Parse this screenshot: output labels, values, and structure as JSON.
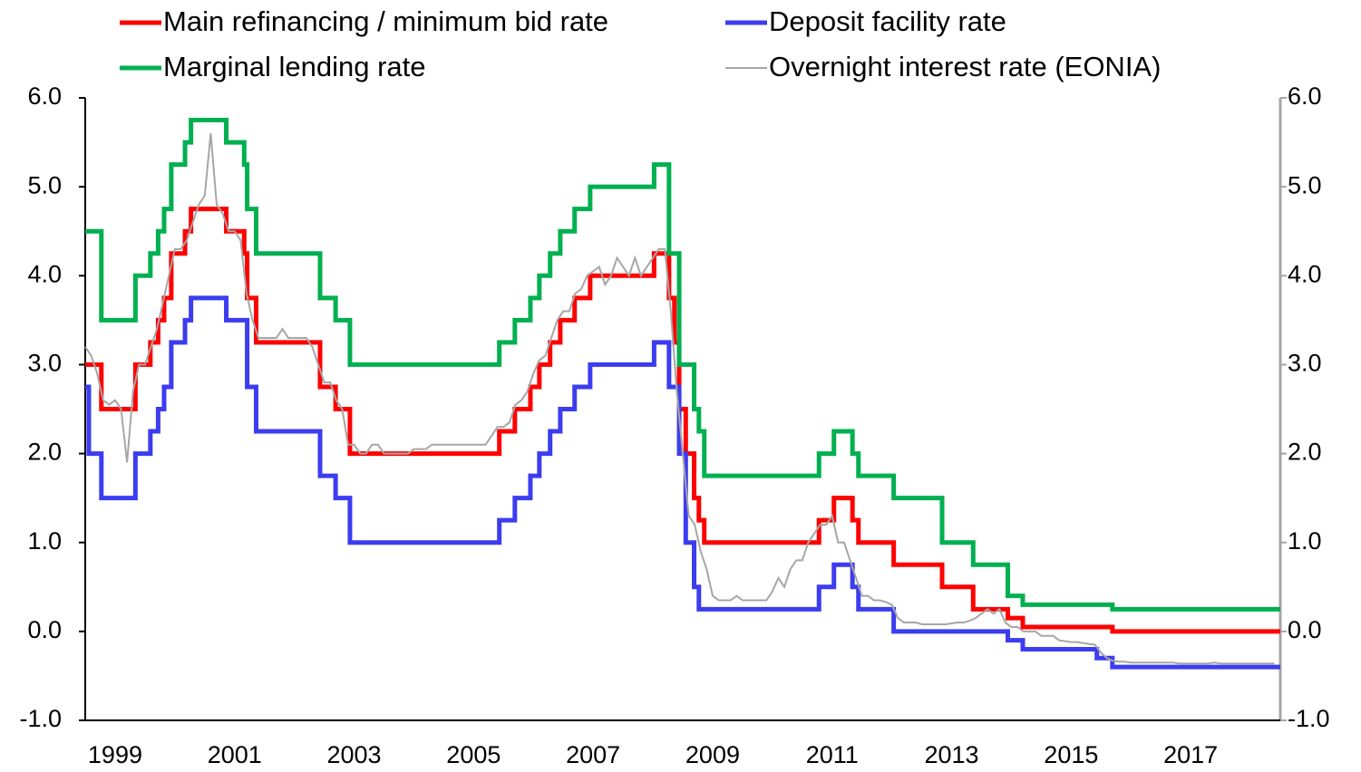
{
  "chart_data": {
    "type": "line",
    "step": "post",
    "xlim": [
      1999,
      2019
    ],
    "xticks": [
      {
        "value": 1999.5,
        "label": "1999"
      },
      {
        "value": 2001.5,
        "label": "2001"
      },
      {
        "value": 2003.5,
        "label": "2003"
      },
      {
        "value": 2005.5,
        "label": "2005"
      },
      {
        "value": 2007.5,
        "label": "2007"
      },
      {
        "value": 2009.5,
        "label": "2009"
      },
      {
        "value": 2011.5,
        "label": "2011"
      },
      {
        "value": 2013.5,
        "label": "2013"
      },
      {
        "value": 2015.5,
        "label": "2015"
      },
      {
        "value": 2017.5,
        "label": "2017"
      }
    ],
    "ylim": [
      -1,
      6
    ],
    "yticks": [
      {
        "value": -1,
        "label": "-1.0"
      },
      {
        "value": 0,
        "label": "0.0"
      },
      {
        "value": 1,
        "label": "1.0"
      },
      {
        "value": 2,
        "label": "2.0"
      },
      {
        "value": 3,
        "label": "3.0"
      },
      {
        "value": 4,
        "label": "4.0"
      },
      {
        "value": 5,
        "label": "5.0"
      },
      {
        "value": 6,
        "label": "6.0"
      }
    ],
    "y2lim": [
      -1,
      6
    ],
    "y2ticks": [
      {
        "value": -1,
        "label": "-1.0"
      },
      {
        "value": 0,
        "label": "0.0"
      },
      {
        "value": 1,
        "label": "1.0"
      },
      {
        "value": 2,
        "label": "2.0"
      },
      {
        "value": 3,
        "label": "3.0"
      },
      {
        "value": 4,
        "label": "4.0"
      },
      {
        "value": 5,
        "label": "5.0"
      },
      {
        "value": 6,
        "label": "6.0"
      }
    ],
    "series": [
      {
        "name": "Main refinancing / minimum bid rate",
        "color": "#ff0000",
        "step": true,
        "x": [
          1999.0,
          1999.27,
          1999.84,
          2000.09,
          2000.22,
          2000.32,
          2000.44,
          2000.67,
          2000.77,
          2001.36,
          2001.66,
          2001.71,
          2001.86,
          2002.93,
          2003.19,
          2003.43,
          2005.93,
          2006.19,
          2006.45,
          2006.6,
          2006.78,
          2006.95,
          2007.19,
          2007.45,
          2008.52,
          2008.77,
          2008.86,
          2008.94,
          2009.05,
          2009.19,
          2009.27,
          2009.36,
          2011.28,
          2011.53,
          2011.84,
          2011.94,
          2012.53,
          2013.34,
          2013.86,
          2014.44,
          2014.69,
          2016.19,
          2019.0
        ],
        "values": [
          3.0,
          2.5,
          3.0,
          3.25,
          3.5,
          3.75,
          4.25,
          4.5,
          4.75,
          4.5,
          4.25,
          3.75,
          3.25,
          2.75,
          2.5,
          2.0,
          2.25,
          2.5,
          2.75,
          3.0,
          3.25,
          3.5,
          3.75,
          4.0,
          4.25,
          3.75,
          3.25,
          2.5,
          2.0,
          1.5,
          1.25,
          1.0,
          1.25,
          1.5,
          1.25,
          1.0,
          0.75,
          0.5,
          0.25,
          0.15,
          0.05,
          0.0,
          0.0
        ]
      },
      {
        "name": "Deposit facility rate",
        "color": "#3c3cf0",
        "step": true,
        "x": [
          1999.0,
          1999.06,
          1999.27,
          1999.84,
          2000.09,
          2000.22,
          2000.32,
          2000.44,
          2000.67,
          2000.77,
          2001.36,
          2001.71,
          2001.86,
          2002.93,
          2003.19,
          2003.43,
          2005.93,
          2006.19,
          2006.45,
          2006.6,
          2006.78,
          2006.95,
          2007.19,
          2007.45,
          2008.52,
          2008.77,
          2008.94,
          2009.05,
          2009.19,
          2009.27,
          2011.28,
          2011.53,
          2011.84,
          2011.94,
          2012.53,
          2014.44,
          2014.69,
          2015.93,
          2016.19,
          2019.0
        ],
        "values": [
          2.75,
          2.0,
          1.5,
          2.0,
          2.25,
          2.5,
          2.75,
          3.25,
          3.5,
          3.75,
          3.5,
          2.75,
          2.25,
          1.75,
          1.5,
          1.0,
          1.25,
          1.5,
          1.75,
          2.0,
          2.25,
          2.5,
          2.75,
          3.0,
          3.25,
          2.75,
          2.0,
          1.0,
          0.5,
          0.25,
          0.5,
          0.75,
          0.5,
          0.25,
          0.0,
          -0.1,
          -0.2,
          -0.3,
          -0.4,
          -0.4
        ]
      },
      {
        "name": "Marginal lending rate",
        "color": "#00b050",
        "step": true,
        "x": [
          1999.0,
          1999.27,
          1999.84,
          2000.09,
          2000.22,
          2000.32,
          2000.44,
          2000.67,
          2000.77,
          2001.36,
          2001.66,
          2001.71,
          2001.86,
          2002.93,
          2003.19,
          2003.43,
          2005.93,
          2006.19,
          2006.45,
          2006.6,
          2006.78,
          2006.95,
          2007.19,
          2007.45,
          2008.52,
          2008.77,
          2008.94,
          2009.19,
          2009.27,
          2009.36,
          2011.28,
          2011.53,
          2011.84,
          2011.94,
          2012.53,
          2013.34,
          2013.86,
          2014.44,
          2014.69,
          2016.19,
          2019.0
        ],
        "values": [
          4.5,
          3.5,
          4.0,
          4.25,
          4.5,
          4.75,
          5.25,
          5.5,
          5.75,
          5.5,
          5.25,
          4.75,
          4.25,
          3.75,
          3.5,
          3.0,
          3.25,
          3.5,
          3.75,
          4.0,
          4.25,
          4.5,
          4.75,
          5.0,
          5.25,
          4.25,
          3.0,
          2.5,
          2.25,
          1.75,
          2.0,
          2.25,
          2.0,
          1.75,
          1.5,
          1.0,
          0.75,
          0.4,
          0.3,
          0.25,
          0.25
        ]
      },
      {
        "name": "Overnight interest rate (EONIA)",
        "color": "#a6a6a6",
        "step": false,
        "x": [
          1999.0,
          1999.1,
          1999.2,
          1999.3,
          1999.4,
          1999.5,
          1999.6,
          1999.7,
          1999.8,
          1999.9,
          2000.0,
          2000.1,
          2000.2,
          2000.3,
          2000.4,
          2000.5,
          2000.6,
          2000.7,
          2000.8,
          2000.9,
          2001.0,
          2001.1,
          2001.2,
          2001.3,
          2001.4,
          2001.5,
          2001.6,
          2001.7,
          2001.8,
          2001.9,
          2002.0,
          2002.1,
          2002.2,
          2002.3,
          2002.4,
          2002.5,
          2002.6,
          2002.7,
          2002.8,
          2002.9,
          2003.0,
          2003.1,
          2003.2,
          2003.3,
          2003.4,
          2003.5,
          2003.6,
          2003.7,
          2003.8,
          2003.9,
          2004.0,
          2004.1,
          2004.2,
          2004.3,
          2004.4,
          2004.5,
          2004.6,
          2004.7,
          2004.8,
          2004.9,
          2005.0,
          2005.1,
          2005.2,
          2005.3,
          2005.4,
          2005.5,
          2005.6,
          2005.7,
          2005.8,
          2005.9,
          2006.0,
          2006.1,
          2006.2,
          2006.3,
          2006.4,
          2006.5,
          2006.6,
          2006.7,
          2006.8,
          2006.9,
          2007.0,
          2007.1,
          2007.2,
          2007.3,
          2007.4,
          2007.5,
          2007.6,
          2007.7,
          2007.8,
          2007.9,
          2008.0,
          2008.1,
          2008.2,
          2008.3,
          2008.4,
          2008.5,
          2008.6,
          2008.7,
          2008.8,
          2008.9,
          2009.0,
          2009.1,
          2009.2,
          2009.3,
          2009.4,
          2009.5,
          2009.6,
          2009.7,
          2009.8,
          2009.9,
          2010.0,
          2010.1,
          2010.2,
          2010.3,
          2010.4,
          2010.5,
          2010.6,
          2010.7,
          2010.8,
          2010.9,
          2011.0,
          2011.1,
          2011.2,
          2011.3,
          2011.4,
          2011.5,
          2011.6,
          2011.7,
          2011.8,
          2011.9,
          2012.0,
          2012.1,
          2012.2,
          2012.3,
          2012.4,
          2012.5,
          2012.6,
          2012.7,
          2012.8,
          2012.9,
          2013.0,
          2013.1,
          2013.2,
          2013.3,
          2013.4,
          2013.5,
          2013.6,
          2013.7,
          2013.8,
          2013.9,
          2014.0,
          2014.1,
          2014.2,
          2014.3,
          2014.4,
          2014.5,
          2014.6,
          2014.7,
          2014.8,
          2014.9,
          2015.0,
          2015.1,
          2015.2,
          2015.3,
          2015.4,
          2015.5,
          2015.6,
          2015.7,
          2015.8,
          2015.9,
          2016.0,
          2016.1,
          2016.2,
          2016.3,
          2016.4,
          2016.5,
          2016.6,
          2016.7,
          2016.8,
          2016.9,
          2017.0,
          2017.1,
          2017.2,
          2017.3,
          2017.4,
          2017.5,
          2017.6,
          2017.7,
          2017.8,
          2017.9,
          2018.0,
          2018.1,
          2018.2,
          2018.3,
          2018.4,
          2018.5,
          2018.6,
          2018.7,
          2018.8,
          2018.9
        ],
        "values": [
          3.2,
          3.1,
          2.9,
          2.6,
          2.55,
          2.6,
          2.5,
          1.9,
          2.7,
          3.0,
          3.0,
          3.2,
          3.4,
          3.7,
          4.0,
          4.3,
          4.3,
          4.4,
          4.6,
          4.8,
          4.9,
          5.6,
          4.8,
          4.7,
          4.5,
          4.5,
          4.4,
          3.8,
          3.5,
          3.3,
          3.3,
          3.3,
          3.3,
          3.4,
          3.3,
          3.3,
          3.3,
          3.3,
          3.2,
          3.0,
          2.8,
          2.8,
          2.6,
          2.5,
          2.1,
          2.1,
          2.0,
          2.0,
          2.1,
          2.1,
          2.0,
          2.0,
          2.0,
          2.0,
          2.0,
          2.05,
          2.05,
          2.05,
          2.1,
          2.1,
          2.1,
          2.1,
          2.1,
          2.1,
          2.1,
          2.1,
          2.1,
          2.1,
          2.2,
          2.3,
          2.3,
          2.35,
          2.55,
          2.6,
          2.7,
          2.9,
          3.05,
          3.1,
          3.3,
          3.5,
          3.6,
          3.6,
          3.8,
          3.85,
          4.0,
          4.05,
          4.1,
          3.9,
          4.0,
          4.2,
          4.1,
          4.0,
          4.2,
          4.0,
          4.1,
          4.2,
          4.3,
          4.3,
          3.6,
          2.7,
          2.0,
          1.3,
          1.2,
          0.9,
          0.7,
          0.4,
          0.35,
          0.35,
          0.35,
          0.4,
          0.35,
          0.35,
          0.35,
          0.35,
          0.35,
          0.45,
          0.6,
          0.5,
          0.7,
          0.8,
          0.8,
          1.0,
          1.1,
          1.2,
          1.2,
          1.3,
          1.0,
          1.0,
          0.8,
          0.6,
          0.4,
          0.4,
          0.35,
          0.35,
          0.33,
          0.3,
          0.15,
          0.1,
          0.1,
          0.1,
          0.08,
          0.08,
          0.08,
          0.08,
          0.08,
          0.09,
          0.1,
          0.1,
          0.12,
          0.15,
          0.2,
          0.25,
          0.2,
          0.25,
          0.1,
          0.05,
          0.05,
          0.0,
          0.0,
          0.0,
          -0.05,
          -0.05,
          -0.05,
          -0.1,
          -0.11,
          -0.12,
          -0.12,
          -0.13,
          -0.14,
          -0.15,
          -0.24,
          -0.3,
          -0.33,
          -0.34,
          -0.34,
          -0.35,
          -0.35,
          -0.35,
          -0.35,
          -0.35,
          -0.35,
          -0.35,
          -0.35,
          -0.36,
          -0.36,
          -0.36,
          -0.36,
          -0.36,
          -0.36,
          -0.35,
          -0.36,
          -0.36,
          -0.36,
          -0.36,
          -0.36,
          -0.36,
          -0.36,
          -0.36,
          -0.36,
          -0.36
        ]
      }
    ]
  }
}
